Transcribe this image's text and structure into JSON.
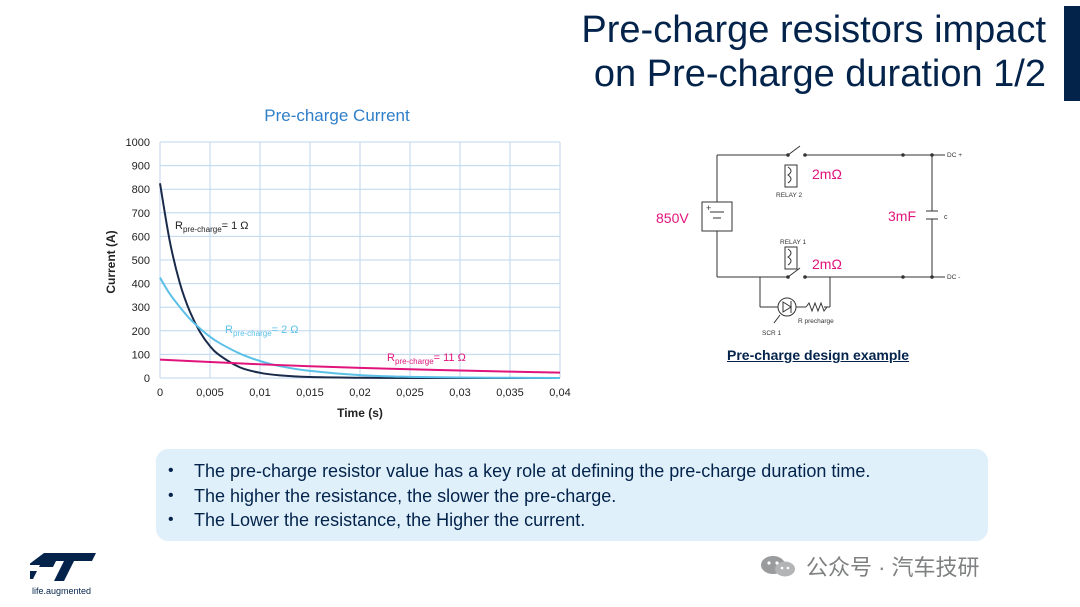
{
  "slide": {
    "title_line1": "Pre-charge resistors impact",
    "title_line2": "on Pre-charge duration 1/2",
    "tagline": "life.augmented",
    "watermark": "公众号 · 汽车技研"
  },
  "colors": {
    "title": "#03234b",
    "series_1ohm": "#1a2a4a",
    "series_2ohm": "#5bc0e8",
    "series_11ohm": "#e0147b",
    "gridline": "#bdd7ee",
    "bullet_box": "#dff0fb",
    "circuit_label": "#e0147b"
  },
  "chart_data": {
    "type": "line",
    "title": "Pre-charge Current",
    "xlabel": "Time (s)",
    "ylabel": "Current (A)",
    "xlim": [
      0,
      0.04
    ],
    "ylim": [
      0,
      1000
    ],
    "xticks": [
      "0",
      "0,005",
      "0,01",
      "0,015",
      "0,02",
      "0,025",
      "0,03",
      "0,035",
      "0,04"
    ],
    "yticks": [
      "0",
      "100",
      "200",
      "300",
      "400",
      "500",
      "600",
      "700",
      "800",
      "900",
      "1000"
    ],
    "grid": true,
    "series": [
      {
        "label_main": "R",
        "label_sub": "pre-charge",
        "label_tail": "= 1 Ω",
        "color": "#1a2a4a",
        "x": [
          0,
          0.001,
          0.002,
          0.003,
          0.004,
          0.005,
          0.006,
          0.008,
          0.01,
          0.012,
          0.015,
          0.02,
          0.025,
          0.03,
          0.035,
          0.04
        ],
        "y": [
          825,
          575,
          400,
          280,
          195,
          135,
          95,
          45,
          22,
          11,
          4,
          1,
          0,
          0,
          0,
          0
        ]
      },
      {
        "label_main": "R",
        "label_sub": "pre-charge",
        "label_tail": "= 2 Ω",
        "color": "#5bc0e8",
        "x": [
          0,
          0.001,
          0.002,
          0.003,
          0.004,
          0.005,
          0.006,
          0.008,
          0.01,
          0.012,
          0.015,
          0.02,
          0.025,
          0.03,
          0.035,
          0.04
        ],
        "y": [
          425,
          355,
          300,
          250,
          210,
          175,
          147,
          103,
          72,
          50,
          30,
          12,
          5,
          2,
          1,
          0
        ]
      },
      {
        "label_main": "R",
        "label_sub": "pre-charge",
        "label_tail": "= 11 Ω",
        "color": "#e0147b",
        "x": [
          0,
          0.005,
          0.01,
          0.015,
          0.02,
          0.025,
          0.03,
          0.035,
          0.04
        ],
        "y": [
          78,
          68,
          58,
          50,
          43,
          37,
          32,
          27,
          23
        ]
      }
    ]
  },
  "circuit": {
    "voltage": "850V",
    "relay2_resistance": "2mΩ",
    "relay1_resistance": "2mΩ",
    "relay2_name": "RELAY 2",
    "relay1_name": "RELAY 1",
    "capacitance": "3mF",
    "cap_name": "c",
    "dc_plus": "DC +",
    "dc_minus": "DC -",
    "scr_name": "SCR 1",
    "resistor_name": "R precharge",
    "caption": "Pre-charge design example"
  },
  "bullets": [
    "The pre-charge resistor value has a key role at defining the pre-charge duration time.",
    "The higher the resistance, the slower the pre-charge.",
    "The Lower the resistance, the Higher the current."
  ]
}
